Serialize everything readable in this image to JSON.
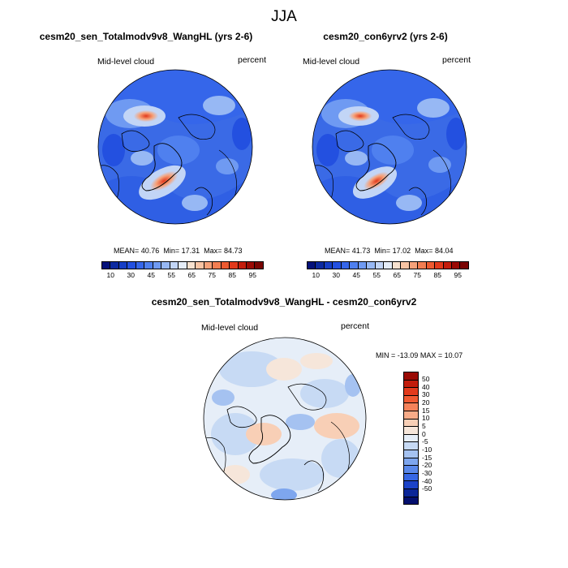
{
  "title": "JJA",
  "panel1": {
    "title": "cesm20_sen_Totalmodv9v8_WangHL (yrs 2-6)",
    "left_label": "Mid-level cloud",
    "right_label": "percent",
    "mean_label": "MEAN=",
    "mean": "40.76",
    "min_label": "Min=",
    "min": "17.31",
    "max_label": "Max=",
    "max": "84.73"
  },
  "panel2": {
    "title": "cesm20_con6yrv2 (yrs 2-6)",
    "left_label": "Mid-level cloud",
    "right_label": "percent",
    "mean_label": "MEAN=",
    "mean": "41.73",
    "min_label": "Min=",
    "min": "17.02",
    "max_label": "Max=",
    "max": "84.04"
  },
  "diff": {
    "title": "cesm20_sen_Totalmodv9v8_WangHL - cesm20_con6yrv2",
    "left_label": "Mid-level cloud",
    "right_label": "percent",
    "min_label": "MIN =",
    "min": "-13.09",
    "max_label": "MAX =",
    "max": "10.07"
  },
  "colorbar_abs": {
    "colors": [
      "#04117a",
      "#0c2aa0",
      "#163ec6",
      "#2350e0",
      "#3566ea",
      "#4f80ef",
      "#6f9af2",
      "#97b8f4",
      "#c2d5f6",
      "#e4ecf7",
      "#f7e1cf",
      "#f8c4a4",
      "#f6a27a",
      "#f37e52",
      "#ee5a30",
      "#e2391b",
      "#c41d0c",
      "#9a0a04",
      "#7a0402"
    ],
    "ticks": [
      "10",
      "30",
      "45",
      "55",
      "65",
      "75",
      "85",
      "95"
    ]
  },
  "colorbar_diff": {
    "colors": [
      "#9a0a04",
      "#c21c0c",
      "#e23a1c",
      "#f05a32",
      "#f5825a",
      "#f8ab88",
      "#f8cfb6",
      "#f6e6da",
      "#e6eef8",
      "#c7daf4",
      "#a5c2f1",
      "#7ea6ee",
      "#5a88ea",
      "#3767e4",
      "#1c43c8",
      "#0b2698",
      "#040f6e"
    ],
    "ticks": [
      "50",
      "40",
      "30",
      "20",
      "15",
      "10",
      "5",
      "0",
      "-5",
      "-10",
      "-15",
      "-20",
      "-30",
      "-40",
      "-50"
    ]
  }
}
